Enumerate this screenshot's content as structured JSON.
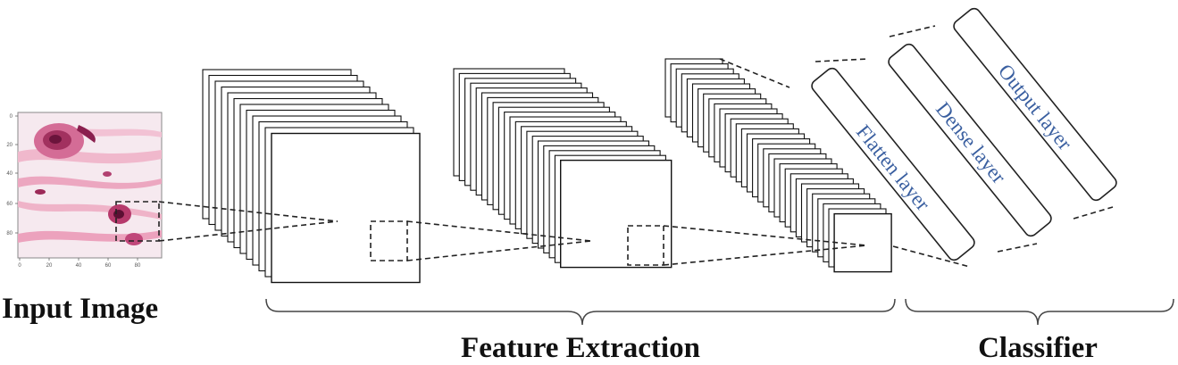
{
  "labels": {
    "input_image": "Input Image",
    "feature_extraction": "Feature Extraction",
    "classifier": "Classifier"
  },
  "layers": {
    "flatten": "Flatten layer",
    "dense": "Dense layer",
    "output": "Output layer"
  },
  "input_plot": {
    "y_ticks": [
      "0",
      "20",
      "40",
      "60",
      "80"
    ],
    "x_ticks": [
      "0",
      "20",
      "40",
      "60",
      "80"
    ]
  },
  "colors": {
    "layer_text": "#3a5fa0",
    "tissue_pink": "#e58fb0",
    "tissue_dark": "#8a1f4e"
  }
}
